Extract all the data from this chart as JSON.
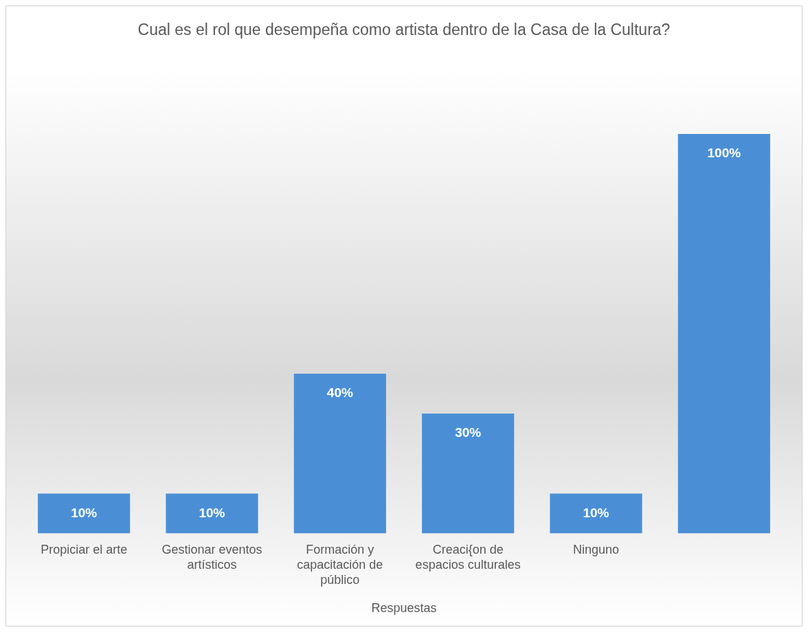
{
  "chart_data": {
    "type": "bar",
    "title": "Cual es el rol que desempeña como artista dentro de la Casa de la Cultura?",
    "xlabel": "Respuestas",
    "categories": [
      "Propiciar el arte",
      "Gestionar eventos artísticos",
      "Formación y capacitación de público",
      "Creaci{on de espacios culturales",
      "Ninguno",
      null
    ],
    "values": [
      10,
      10,
      40,
      30,
      10,
      100
    ],
    "value_labels": [
      "10%",
      "10%",
      "40%",
      "30%",
      "10%",
      "100%"
    ],
    "color": "#4a8fd6",
    "grid": false,
    "legend": false
  }
}
